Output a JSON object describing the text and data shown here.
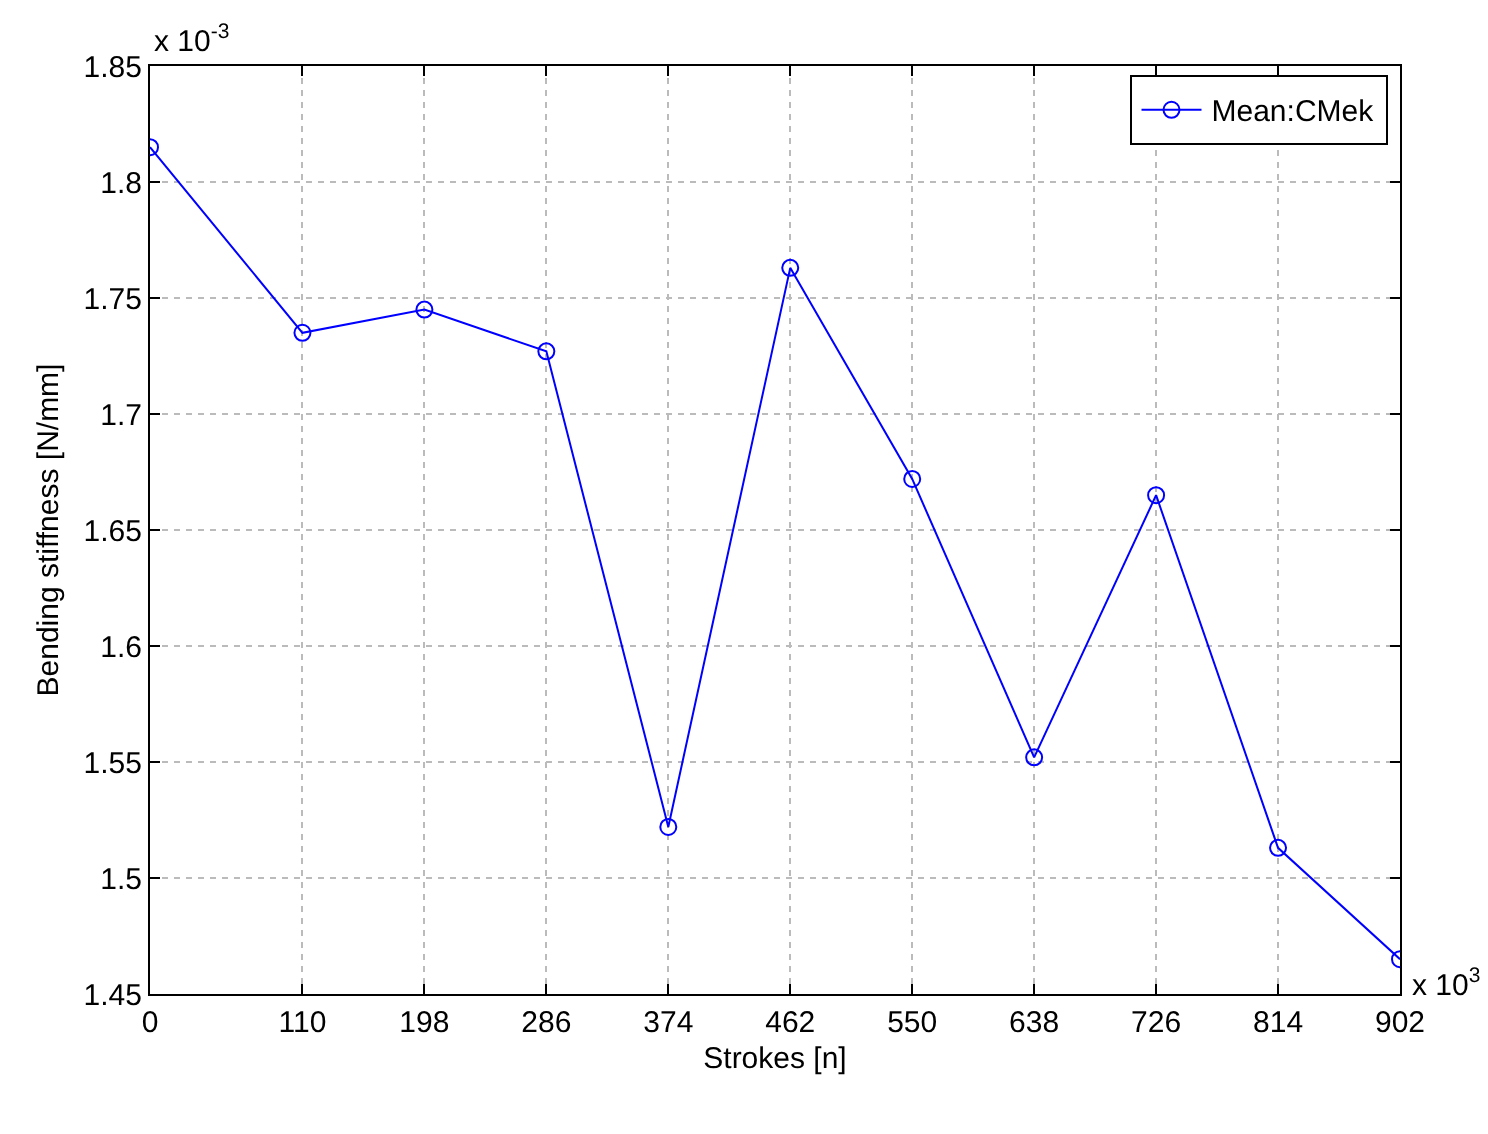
{
  "chart_data": {
    "type": "line",
    "xlabel": "Strokes [n]",
    "ylabel": "Bending stiffness [N/mm]",
    "x": [
      0,
      110,
      198,
      286,
      374,
      462,
      550,
      638,
      726,
      814,
      902
    ],
    "series": [
      {
        "name": "Mean:CMek",
        "color": "#0000ff",
        "values": [
          1.815,
          1.735,
          1.745,
          1.727,
          1.522,
          1.763,
          1.672,
          1.552,
          1.665,
          1.513,
          1.465
        ]
      }
    ],
    "xlim": [
      0,
      902
    ],
    "xticks": [
      0,
      110,
      198,
      286,
      374,
      462,
      550,
      638,
      726,
      814,
      902
    ],
    "ylim": [
      1.45,
      1.85
    ],
    "yticks": [
      1.45,
      1.5,
      1.55,
      1.6,
      1.65,
      1.7,
      1.75,
      1.8,
      1.85
    ],
    "annotations": [
      "x 10$^{-3}$",
      "x 10$^{3}$"
    ],
    "grid": true,
    "legend": "top right",
    "marker": "circle",
    "line_style": "solid"
  }
}
